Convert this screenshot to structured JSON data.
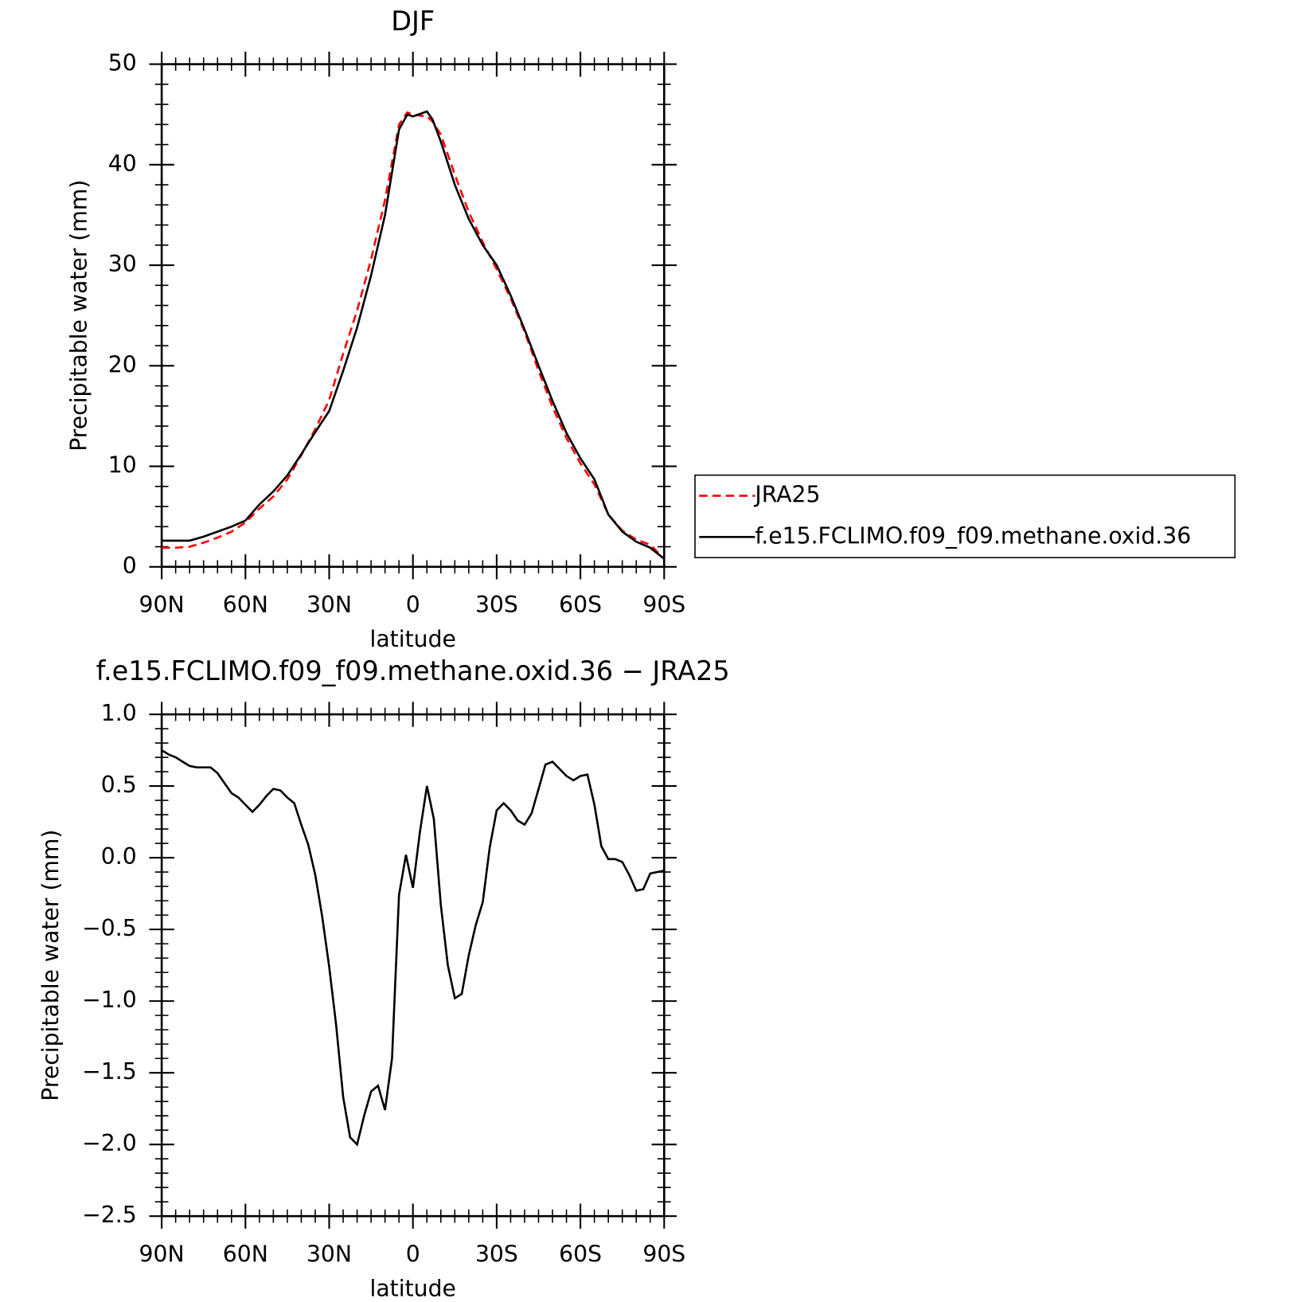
{
  "chart_data": [
    {
      "type": "line",
      "title": "DJF",
      "xlabel": "latitude",
      "ylabel": "Precipitable water (mm)",
      "x": [
        90,
        85,
        80,
        75,
        70,
        65,
        60,
        55,
        50,
        45,
        40,
        35,
        30,
        25,
        20,
        15,
        10,
        5,
        2,
        0,
        -2,
        -5,
        -7,
        -10,
        -15,
        -20,
        -25,
        -30,
        -35,
        -40,
        -45,
        -50,
        -55,
        -60,
        -65,
        -70,
        -75,
        -80,
        -85,
        -90
      ],
      "xlim": [
        90,
        -90
      ],
      "xticks": [
        {
          "value": 90,
          "label": "90N"
        },
        {
          "value": 60,
          "label": "60N"
        },
        {
          "value": 30,
          "label": "30N"
        },
        0,
        {
          "value": -30,
          "label": "30S"
        },
        {
          "value": -60,
          "label": "60S"
        },
        {
          "value": -90,
          "label": "90S"
        }
      ],
      "xminorticks": [
        85,
        80,
        75,
        70,
        65,
        55,
        50,
        45,
        40,
        35,
        25,
        20,
        15,
        10,
        5,
        -5,
        -10,
        -15,
        -20,
        -25,
        -35,
        -40,
        -45,
        -50,
        -55,
        -65,
        -70,
        -75,
        -80,
        -85
      ],
      "ylim": [
        0,
        50
      ],
      "yticks": [
        0,
        10,
        20,
        30,
        40,
        50
      ],
      "yminorticks": [
        2,
        4,
        6,
        8,
        12,
        14,
        16,
        18,
        22,
        24,
        26,
        28,
        32,
        34,
        36,
        38,
        42,
        44,
        46,
        48
      ],
      "legend": "right",
      "series": [
        {
          "name": "JRA25",
          "color": "#ff0000",
          "style": "dashed",
          "values": [
            1.9,
            1.9,
            2.0,
            2.4,
            2.9,
            3.5,
            4.4,
            5.8,
            7.0,
            8.7,
            11.1,
            13.7,
            16.6,
            21.2,
            25.5,
            30.6,
            36.5,
            44.0,
            45.2,
            45.0,
            44.9,
            44.8,
            44.3,
            43.0,
            39.0,
            35.3,
            32.3,
            29.6,
            26.7,
            23.4,
            19.5,
            15.9,
            12.8,
            10.3,
            8.2,
            5.2,
            3.6,
            2.7,
            2.2,
            0.8
          ]
        },
        {
          "name": "f.e15.FCLIMO.f09_f09.methane.oxid.36",
          "color": "#000000",
          "style": "solid",
          "values": [
            2.6,
            2.6,
            2.6,
            3.0,
            3.5,
            4.0,
            4.6,
            6.2,
            7.5,
            9.1,
            11.2,
            13.4,
            15.5,
            19.5,
            23.8,
            29.0,
            35.0,
            43.5,
            45.0,
            44.8,
            45.0,
            45.3,
            44.5,
            42.3,
            38.0,
            34.6,
            32.0,
            30.0,
            27.0,
            23.6,
            20.0,
            16.5,
            13.3,
            10.8,
            8.7,
            5.2,
            3.5,
            2.5,
            1.9,
            0.8
          ]
        }
      ]
    },
    {
      "type": "line",
      "title": "f.e15.FCLIMO.f09_f09.methane.oxid.36 − JRA25",
      "xlabel": "latitude",
      "ylabel": "Precipitable water (mm)",
      "x": [
        90,
        87.5,
        85,
        82.5,
        80,
        77.5,
        75,
        72.5,
        70,
        67.5,
        65,
        62.5,
        60,
        57.5,
        55,
        52.5,
        50,
        47.5,
        45,
        42.5,
        40,
        37.5,
        35,
        32.5,
        30,
        27.5,
        25,
        22.5,
        20,
        17.5,
        15,
        12.5,
        10,
        7.5,
        5,
        2.5,
        0,
        -2.5,
        -5,
        -7.5,
        -10,
        -12.5,
        -15,
        -17.5,
        -20,
        -22.5,
        -25,
        -27.5,
        -30,
        -32.5,
        -35,
        -37.5,
        -40,
        -42.5,
        -45,
        -47.5,
        -50,
        -52.5,
        -55,
        -57.5,
        -60,
        -62.5,
        -65,
        -67.5,
        -70,
        -72.5,
        -75,
        -77.5,
        -80,
        -82.5,
        -85,
        -87.5,
        -90
      ],
      "xlim": [
        90,
        -90
      ],
      "xticks": [
        {
          "value": 90,
          "label": "90N"
        },
        {
          "value": 60,
          "label": "60N"
        },
        {
          "value": 30,
          "label": "30N"
        },
        0,
        {
          "value": -30,
          "label": "30S"
        },
        {
          "value": -60,
          "label": "60S"
        },
        {
          "value": -90,
          "label": "90S"
        }
      ],
      "xminorticks": [
        85,
        80,
        75,
        70,
        65,
        55,
        50,
        45,
        40,
        35,
        25,
        20,
        15,
        10,
        5,
        -5,
        -10,
        -15,
        -20,
        -25,
        -35,
        -40,
        -45,
        -50,
        -55,
        -65,
        -70,
        -75,
        -80,
        -85
      ],
      "ylim": [
        -2.5,
        1.0
      ],
      "yticks": [
        {
          "value": 1.0,
          "label": "1.0"
        },
        0.5,
        {
          "value": 0,
          "label": "0.0"
        },
        {
          "value": -0.5,
          "label": "−0.5"
        },
        {
          "value": -1.0,
          "label": "−1.0"
        },
        {
          "value": -1.5,
          "label": "−1.5"
        },
        {
          "value": -2.0,
          "label": "−2.0"
        },
        {
          "value": -2.5,
          "label": "−2.5"
        }
      ],
      "yminorticks": [
        0.9,
        0.8,
        0.7,
        0.6,
        0.4,
        0.3,
        0.2,
        0.1,
        -0.1,
        -0.2,
        -0.3,
        -0.4,
        -0.6,
        -0.7,
        -0.8,
        -0.9,
        -1.1,
        -1.2,
        -1.3,
        -1.4,
        -1.6,
        -1.7,
        -1.8,
        -1.9,
        -2.1,
        -2.2,
        -2.3,
        -2.4
      ],
      "series": [
        {
          "name": "f.e15.FCLIMO.f09_f09.methane.oxid.36 − JRA25",
          "color": "#000000",
          "style": "solid",
          "values": [
            0.75,
            0.72,
            0.7,
            0.67,
            0.64,
            0.63,
            0.63,
            0.63,
            0.59,
            0.52,
            0.45,
            0.42,
            0.37,
            0.32,
            0.37,
            0.43,
            0.48,
            0.47,
            0.42,
            0.38,
            0.23,
            0.09,
            -0.12,
            -0.41,
            -0.76,
            -1.17,
            -1.67,
            -1.95,
            -2.0,
            -1.8,
            -1.63,
            -1.59,
            -1.76,
            -1.4,
            -0.26,
            0.02,
            -0.21,
            0.18,
            0.5,
            0.27,
            -0.33,
            -0.75,
            -0.98,
            -0.95,
            -0.68,
            -0.47,
            -0.31,
            0.07,
            0.33,
            0.38,
            0.33,
            0.26,
            0.23,
            0.31,
            0.48,
            0.65,
            0.67,
            0.62,
            0.57,
            0.54,
            0.57,
            0.58,
            0.37,
            0.08,
            -0.01,
            -0.01,
            -0.03,
            -0.12,
            -0.23,
            -0.22,
            -0.11,
            -0.1,
            -0.09
          ]
        }
      ]
    }
  ]
}
